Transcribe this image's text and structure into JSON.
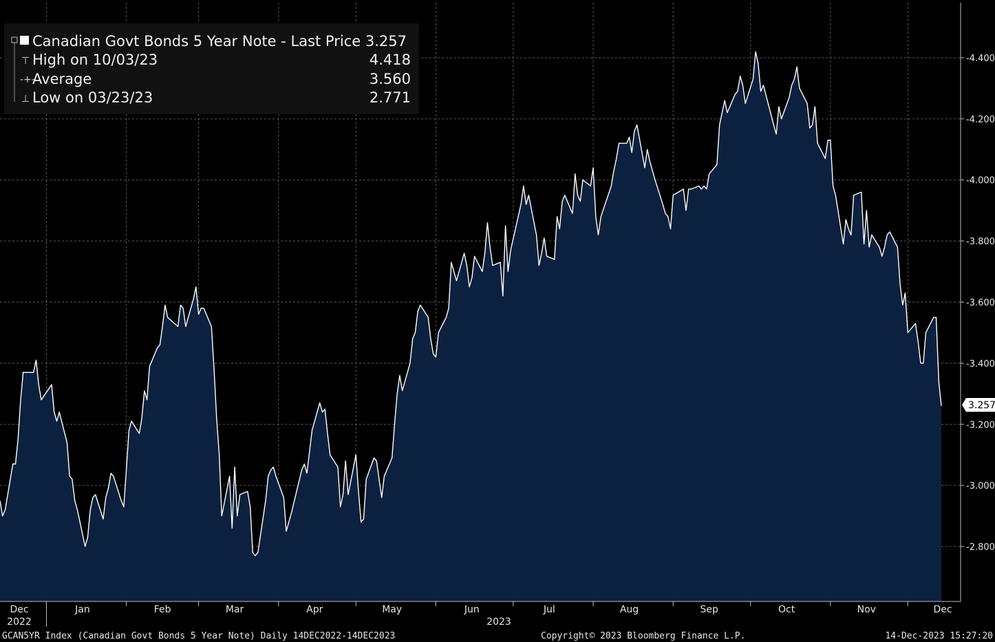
{
  "legend": {
    "series_label": "Canadian Govt Bonds 5 Year Note - Last Price 3.257",
    "rows": [
      {
        "label": "High on 10/03/23",
        "value": "4.418"
      },
      {
        "label": "Average",
        "value": "3.560"
      },
      {
        "label": "Low on 03/23/23",
        "value": "2.771"
      }
    ]
  },
  "last_price_tag": "3.257",
  "footer": {
    "left": "GCAN5YR Index (Canadian Govt Bonds 5 Year Note)  Daily 14DEC2022-14DEC2023",
    "center": "Copyright© 2023 Bloomberg Finance L.P.",
    "right": "14-Dec-2023 15:27:20"
  },
  "colors": {
    "background": "#000000",
    "area_fill": "#0c2140",
    "line": "#ffffff",
    "grid": "#5a5a5a"
  },
  "chart_data": {
    "type": "area",
    "title": "Canadian Govt Bonds 5 Year Note",
    "ylim": [
      2.62,
      4.58
    ],
    "y_ticks": [
      "2.800",
      "3.000",
      "3.200",
      "3.400",
      "3.600",
      "3.800",
      "4.000",
      "4.200",
      "4.400"
    ],
    "x_labels": [
      {
        "date": "2022-12-14",
        "label": "Dec",
        "year": "2022"
      },
      {
        "date": "2023-01-15",
        "label": "Jan"
      },
      {
        "date": "2023-02-15",
        "label": "Feb"
      },
      {
        "date": "2023-03-15",
        "label": "Mar"
      },
      {
        "date": "2023-04-15",
        "label": "Apr"
      },
      {
        "date": "2023-05-15",
        "label": "May"
      },
      {
        "date": "2023-06-15",
        "label": "Jun",
        "year": "2023"
      },
      {
        "date": "2023-07-15",
        "label": "Jul"
      },
      {
        "date": "2023-08-15",
        "label": "Aug"
      },
      {
        "date": "2023-09-15",
        "label": "Sep"
      },
      {
        "date": "2023-10-15",
        "label": "Oct"
      },
      {
        "date": "2023-11-15",
        "label": "Nov"
      },
      {
        "date": "2023-12-14",
        "label": "Dec"
      }
    ],
    "month_boundaries": [
      "2023-01-01",
      "2023-02-01",
      "2023-03-01",
      "2023-04-01",
      "2023-05-01",
      "2023-06-01",
      "2023-07-01",
      "2023-08-01",
      "2023-09-01",
      "2023-10-01",
      "2023-11-01",
      "2023-12-01"
    ],
    "series": [
      {
        "name": "Last Price",
        "points": [
          [
            "2022-12-14",
            2.95
          ],
          [
            "2022-12-15",
            2.9
          ],
          [
            "2022-12-16",
            2.92
          ],
          [
            "2022-12-19",
            3.07
          ],
          [
            "2022-12-20",
            3.07
          ],
          [
            "2022-12-21",
            3.15
          ],
          [
            "2022-12-22",
            3.28
          ],
          [
            "2022-12-23",
            3.37
          ],
          [
            "2022-12-27",
            3.37
          ],
          [
            "2022-12-28",
            3.41
          ],
          [
            "2022-12-29",
            3.33
          ],
          [
            "2022-12-30",
            3.28
          ],
          [
            "2023-01-03",
            3.33
          ],
          [
            "2023-01-04",
            3.24
          ],
          [
            "2023-01-05",
            3.21
          ],
          [
            "2023-01-06",
            3.24
          ],
          [
            "2023-01-09",
            3.14
          ],
          [
            "2023-01-10",
            3.03
          ],
          [
            "2023-01-11",
            3.02
          ],
          [
            "2023-01-12",
            2.95
          ],
          [
            "2023-01-13",
            2.92
          ],
          [
            "2023-01-16",
            2.8
          ],
          [
            "2023-01-17",
            2.83
          ],
          [
            "2023-01-18",
            2.92
          ],
          [
            "2023-01-19",
            2.96
          ],
          [
            "2023-01-20",
            2.97
          ],
          [
            "2023-01-23",
            2.89
          ],
          [
            "2023-01-24",
            2.96
          ],
          [
            "2023-01-25",
            2.99
          ],
          [
            "2023-01-26",
            3.04
          ],
          [
            "2023-01-27",
            3.03
          ],
          [
            "2023-01-30",
            2.95
          ],
          [
            "2023-01-31",
            2.93
          ],
          [
            "2023-02-01",
            3.05
          ],
          [
            "2023-02-02",
            3.18
          ],
          [
            "2023-02-03",
            3.21
          ],
          [
            "2023-02-06",
            3.17
          ],
          [
            "2023-02-07",
            3.22
          ],
          [
            "2023-02-08",
            3.31
          ],
          [
            "2023-02-09",
            3.28
          ],
          [
            "2023-02-10",
            3.39
          ],
          [
            "2023-02-13",
            3.45
          ],
          [
            "2023-02-14",
            3.46
          ],
          [
            "2023-02-15",
            3.52
          ],
          [
            "2023-02-16",
            3.59
          ],
          [
            "2023-02-17",
            3.55
          ],
          [
            "2023-02-21",
            3.52
          ],
          [
            "2023-02-22",
            3.59
          ],
          [
            "2023-02-23",
            3.58
          ],
          [
            "2023-02-24",
            3.52
          ],
          [
            "2023-02-27",
            3.61
          ],
          [
            "2023-02-28",
            3.65
          ],
          [
            "2023-03-01",
            3.56
          ],
          [
            "2023-03-02",
            3.58
          ],
          [
            "2023-03-03",
            3.58
          ],
          [
            "2023-03-06",
            3.52
          ],
          [
            "2023-03-07",
            3.38
          ],
          [
            "2023-03-08",
            3.22
          ],
          [
            "2023-03-09",
            3.1
          ],
          [
            "2023-03-10",
            2.9
          ],
          [
            "2023-03-13",
            3.03
          ],
          [
            "2023-03-14",
            2.86
          ],
          [
            "2023-03-15",
            3.06
          ],
          [
            "2023-03-16",
            2.9
          ],
          [
            "2023-03-17",
            2.97
          ],
          [
            "2023-03-20",
            2.98
          ],
          [
            "2023-03-21",
            2.93
          ],
          [
            "2023-03-22",
            2.78
          ],
          [
            "2023-03-23",
            2.77
          ],
          [
            "2023-03-24",
            2.78
          ],
          [
            "2023-03-27",
            2.95
          ],
          [
            "2023-03-28",
            3.03
          ],
          [
            "2023-03-29",
            3.05
          ],
          [
            "2023-03-30",
            3.06
          ],
          [
            "2023-03-31",
            3.03
          ],
          [
            "2023-04-03",
            2.96
          ],
          [
            "2023-04-04",
            2.85
          ],
          [
            "2023-04-05",
            2.88
          ],
          [
            "2023-04-06",
            2.91
          ],
          [
            "2023-04-10",
            3.05
          ],
          [
            "2023-04-11",
            3.07
          ],
          [
            "2023-04-12",
            3.04
          ],
          [
            "2023-04-13",
            3.11
          ],
          [
            "2023-04-14",
            3.18
          ],
          [
            "2023-04-17",
            3.27
          ],
          [
            "2023-04-18",
            3.24
          ],
          [
            "2023-04-19",
            3.25
          ],
          [
            "2023-04-20",
            3.17
          ],
          [
            "2023-04-21",
            3.1
          ],
          [
            "2023-04-24",
            3.06
          ],
          [
            "2023-04-25",
            2.93
          ],
          [
            "2023-04-26",
            2.97
          ],
          [
            "2023-04-27",
            3.08
          ],
          [
            "2023-04-28",
            2.97
          ],
          [
            "2023-05-01",
            3.1
          ],
          [
            "2023-05-02",
            2.98
          ],
          [
            "2023-05-03",
            2.88
          ],
          [
            "2023-05-04",
            2.89
          ],
          [
            "2023-05-05",
            3.02
          ],
          [
            "2023-05-08",
            3.09
          ],
          [
            "2023-05-09",
            3.08
          ],
          [
            "2023-05-10",
            3.02
          ],
          [
            "2023-05-11",
            2.96
          ],
          [
            "2023-05-12",
            3.03
          ],
          [
            "2023-05-15",
            3.09
          ],
          [
            "2023-05-16",
            3.2
          ],
          [
            "2023-05-17",
            3.3
          ],
          [
            "2023-05-18",
            3.36
          ],
          [
            "2023-05-19",
            3.31
          ],
          [
            "2023-05-22",
            3.4
          ],
          [
            "2023-05-23",
            3.48
          ],
          [
            "2023-05-24",
            3.5
          ],
          [
            "2023-05-25",
            3.57
          ],
          [
            "2023-05-26",
            3.59
          ],
          [
            "2023-05-29",
            3.55
          ],
          [
            "2023-05-30",
            3.48
          ],
          [
            "2023-05-31",
            3.43
          ],
          [
            "2023-06-01",
            3.42
          ],
          [
            "2023-06-02",
            3.5
          ],
          [
            "2023-06-05",
            3.55
          ],
          [
            "2023-06-06",
            3.58
          ],
          [
            "2023-06-07",
            3.73
          ],
          [
            "2023-06-08",
            3.7
          ],
          [
            "2023-06-09",
            3.67
          ],
          [
            "2023-06-12",
            3.76
          ],
          [
            "2023-06-13",
            3.72
          ],
          [
            "2023-06-14",
            3.65
          ],
          [
            "2023-06-15",
            3.68
          ],
          [
            "2023-06-16",
            3.75
          ],
          [
            "2023-06-19",
            3.7
          ],
          [
            "2023-06-20",
            3.76
          ],
          [
            "2023-06-21",
            3.86
          ],
          [
            "2023-06-22",
            3.78
          ],
          [
            "2023-06-23",
            3.72
          ],
          [
            "2023-06-26",
            3.73
          ],
          [
            "2023-06-27",
            3.62
          ],
          [
            "2023-06-28",
            3.85
          ],
          [
            "2023-06-29",
            3.7
          ],
          [
            "2023-06-30",
            3.77
          ],
          [
            "2023-07-04",
            3.92
          ],
          [
            "2023-07-05",
            3.98
          ],
          [
            "2023-07-06",
            3.92
          ],
          [
            "2023-07-07",
            3.95
          ],
          [
            "2023-07-10",
            3.82
          ],
          [
            "2023-07-11",
            3.72
          ],
          [
            "2023-07-12",
            3.76
          ],
          [
            "2023-07-13",
            3.81
          ],
          [
            "2023-07-14",
            3.75
          ],
          [
            "2023-07-17",
            3.74
          ],
          [
            "2023-07-18",
            3.88
          ],
          [
            "2023-07-19",
            3.84
          ],
          [
            "2023-07-20",
            3.93
          ],
          [
            "2023-07-21",
            3.95
          ],
          [
            "2023-07-24",
            3.89
          ],
          [
            "2023-07-25",
            4.02
          ],
          [
            "2023-07-26",
            3.95
          ],
          [
            "2023-07-27",
            3.93
          ],
          [
            "2023-07-28",
            4.0
          ],
          [
            "2023-07-31",
            3.98
          ],
          [
            "2023-08-01",
            4.04
          ],
          [
            "2023-08-02",
            3.88
          ],
          [
            "2023-08-03",
            3.82
          ],
          [
            "2023-08-04",
            3.88
          ],
          [
            "2023-08-08",
            3.98
          ],
          [
            "2023-08-09",
            4.03
          ],
          [
            "2023-08-10",
            4.07
          ],
          [
            "2023-08-11",
            4.12
          ],
          [
            "2023-08-14",
            4.12
          ],
          [
            "2023-08-15",
            4.14
          ],
          [
            "2023-08-16",
            4.09
          ],
          [
            "2023-08-17",
            4.16
          ],
          [
            "2023-08-18",
            4.18
          ],
          [
            "2023-08-21",
            4.04
          ],
          [
            "2023-08-22",
            4.1
          ],
          [
            "2023-08-23",
            4.06
          ],
          [
            "2023-08-24",
            4.03
          ],
          [
            "2023-08-25",
            4.0
          ],
          [
            "2023-08-28",
            3.92
          ],
          [
            "2023-08-29",
            3.89
          ],
          [
            "2023-08-30",
            3.88
          ],
          [
            "2023-08-31",
            3.84
          ],
          [
            "2023-09-01",
            3.95
          ],
          [
            "2023-09-05",
            3.97
          ],
          [
            "2023-09-06",
            3.9
          ],
          [
            "2023-09-07",
            3.97
          ],
          [
            "2023-09-08",
            3.97
          ],
          [
            "2023-09-11",
            3.98
          ],
          [
            "2023-09-12",
            3.97
          ],
          [
            "2023-09-13",
            3.98
          ],
          [
            "2023-09-14",
            3.97
          ],
          [
            "2023-09-15",
            4.02
          ],
          [
            "2023-09-18",
            4.05
          ],
          [
            "2023-09-19",
            4.18
          ],
          [
            "2023-09-20",
            4.22
          ],
          [
            "2023-09-21",
            4.26
          ],
          [
            "2023-09-22",
            4.22
          ],
          [
            "2023-09-25",
            4.28
          ],
          [
            "2023-09-26",
            4.29
          ],
          [
            "2023-09-27",
            4.34
          ],
          [
            "2023-09-28",
            4.31
          ],
          [
            "2023-09-29",
            4.25
          ],
          [
            "2023-10-02",
            4.33
          ],
          [
            "2023-10-03",
            4.42
          ],
          [
            "2023-10-04",
            4.38
          ],
          [
            "2023-10-05",
            4.29
          ],
          [
            "2023-10-06",
            4.31
          ],
          [
            "2023-10-10",
            4.18
          ],
          [
            "2023-10-11",
            4.15
          ],
          [
            "2023-10-12",
            4.24
          ],
          [
            "2023-10-13",
            4.2
          ],
          [
            "2023-10-16",
            4.27
          ],
          [
            "2023-10-17",
            4.31
          ],
          [
            "2023-10-18",
            4.33
          ],
          [
            "2023-10-19",
            4.37
          ],
          [
            "2023-10-20",
            4.3
          ],
          [
            "2023-10-23",
            4.25
          ],
          [
            "2023-10-24",
            4.17
          ],
          [
            "2023-10-25",
            4.18
          ],
          [
            "2023-10-26",
            4.24
          ],
          [
            "2023-10-27",
            4.12
          ],
          [
            "2023-10-30",
            4.07
          ],
          [
            "2023-10-31",
            4.13
          ],
          [
            "2023-11-01",
            4.13
          ],
          [
            "2023-11-02",
            3.98
          ],
          [
            "2023-11-03",
            3.95
          ],
          [
            "2023-11-06",
            3.79
          ],
          [
            "2023-11-07",
            3.87
          ],
          [
            "2023-11-08",
            3.84
          ],
          [
            "2023-11-09",
            3.82
          ],
          [
            "2023-11-10",
            3.95
          ],
          [
            "2023-11-13",
            3.96
          ],
          [
            "2023-11-14",
            3.79
          ],
          [
            "2023-11-15",
            3.9
          ],
          [
            "2023-11-16",
            3.78
          ],
          [
            "2023-11-17",
            3.82
          ],
          [
            "2023-11-20",
            3.78
          ],
          [
            "2023-11-21",
            3.75
          ],
          [
            "2023-11-22",
            3.78
          ],
          [
            "2023-11-23",
            3.82
          ],
          [
            "2023-11-24",
            3.83
          ],
          [
            "2023-11-27",
            3.78
          ],
          [
            "2023-11-28",
            3.66
          ],
          [
            "2023-11-29",
            3.59
          ],
          [
            "2023-11-30",
            3.63
          ],
          [
            "2023-12-01",
            3.5
          ],
          [
            "2023-12-04",
            3.53
          ],
          [
            "2023-12-05",
            3.47
          ],
          [
            "2023-12-06",
            3.4
          ],
          [
            "2023-12-07",
            3.4
          ],
          [
            "2023-12-08",
            3.5
          ],
          [
            "2023-12-11",
            3.55
          ],
          [
            "2023-12-12",
            3.55
          ],
          [
            "2023-12-13",
            3.34
          ],
          [
            "2023-12-14",
            3.26
          ]
        ]
      }
    ]
  }
}
